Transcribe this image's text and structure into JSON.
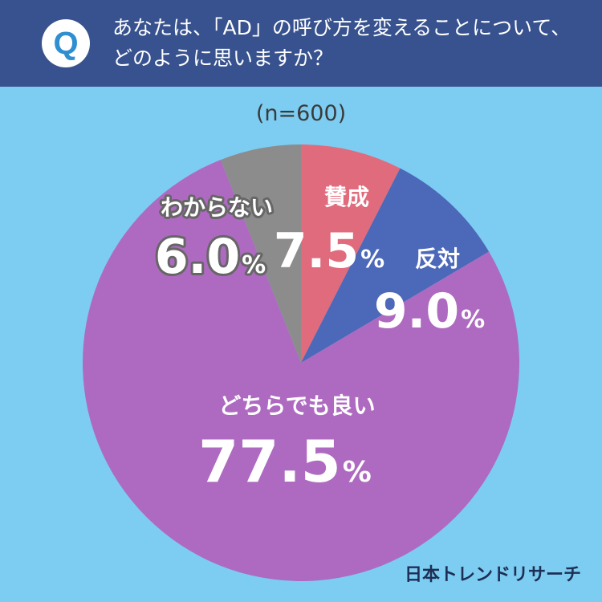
{
  "header": {
    "badge": "Q",
    "question_line1": "あなたは、「AD」の呼び方を変えることについて、",
    "question_line2": "どのように思いますか？"
  },
  "sample_size": "(n=600)",
  "brand": "日本トレンドリサーチ",
  "percent_sign": "%",
  "chart_data": {
    "type": "pie",
    "title": "",
    "categories": [
      "賛成",
      "反対",
      "どちらでも良い",
      "わからない"
    ],
    "values": [
      7.5,
      9.0,
      77.5,
      6.0
    ],
    "value_labels": [
      "7.5",
      "9.0",
      "77.5",
      "6.0"
    ],
    "colors": [
      "#e06b7c",
      "#4c68b9",
      "#ae6ac0",
      "#8c8c8c"
    ],
    "start": "12 o'clock, clockwise",
    "legend": "none (labels on slices)"
  }
}
